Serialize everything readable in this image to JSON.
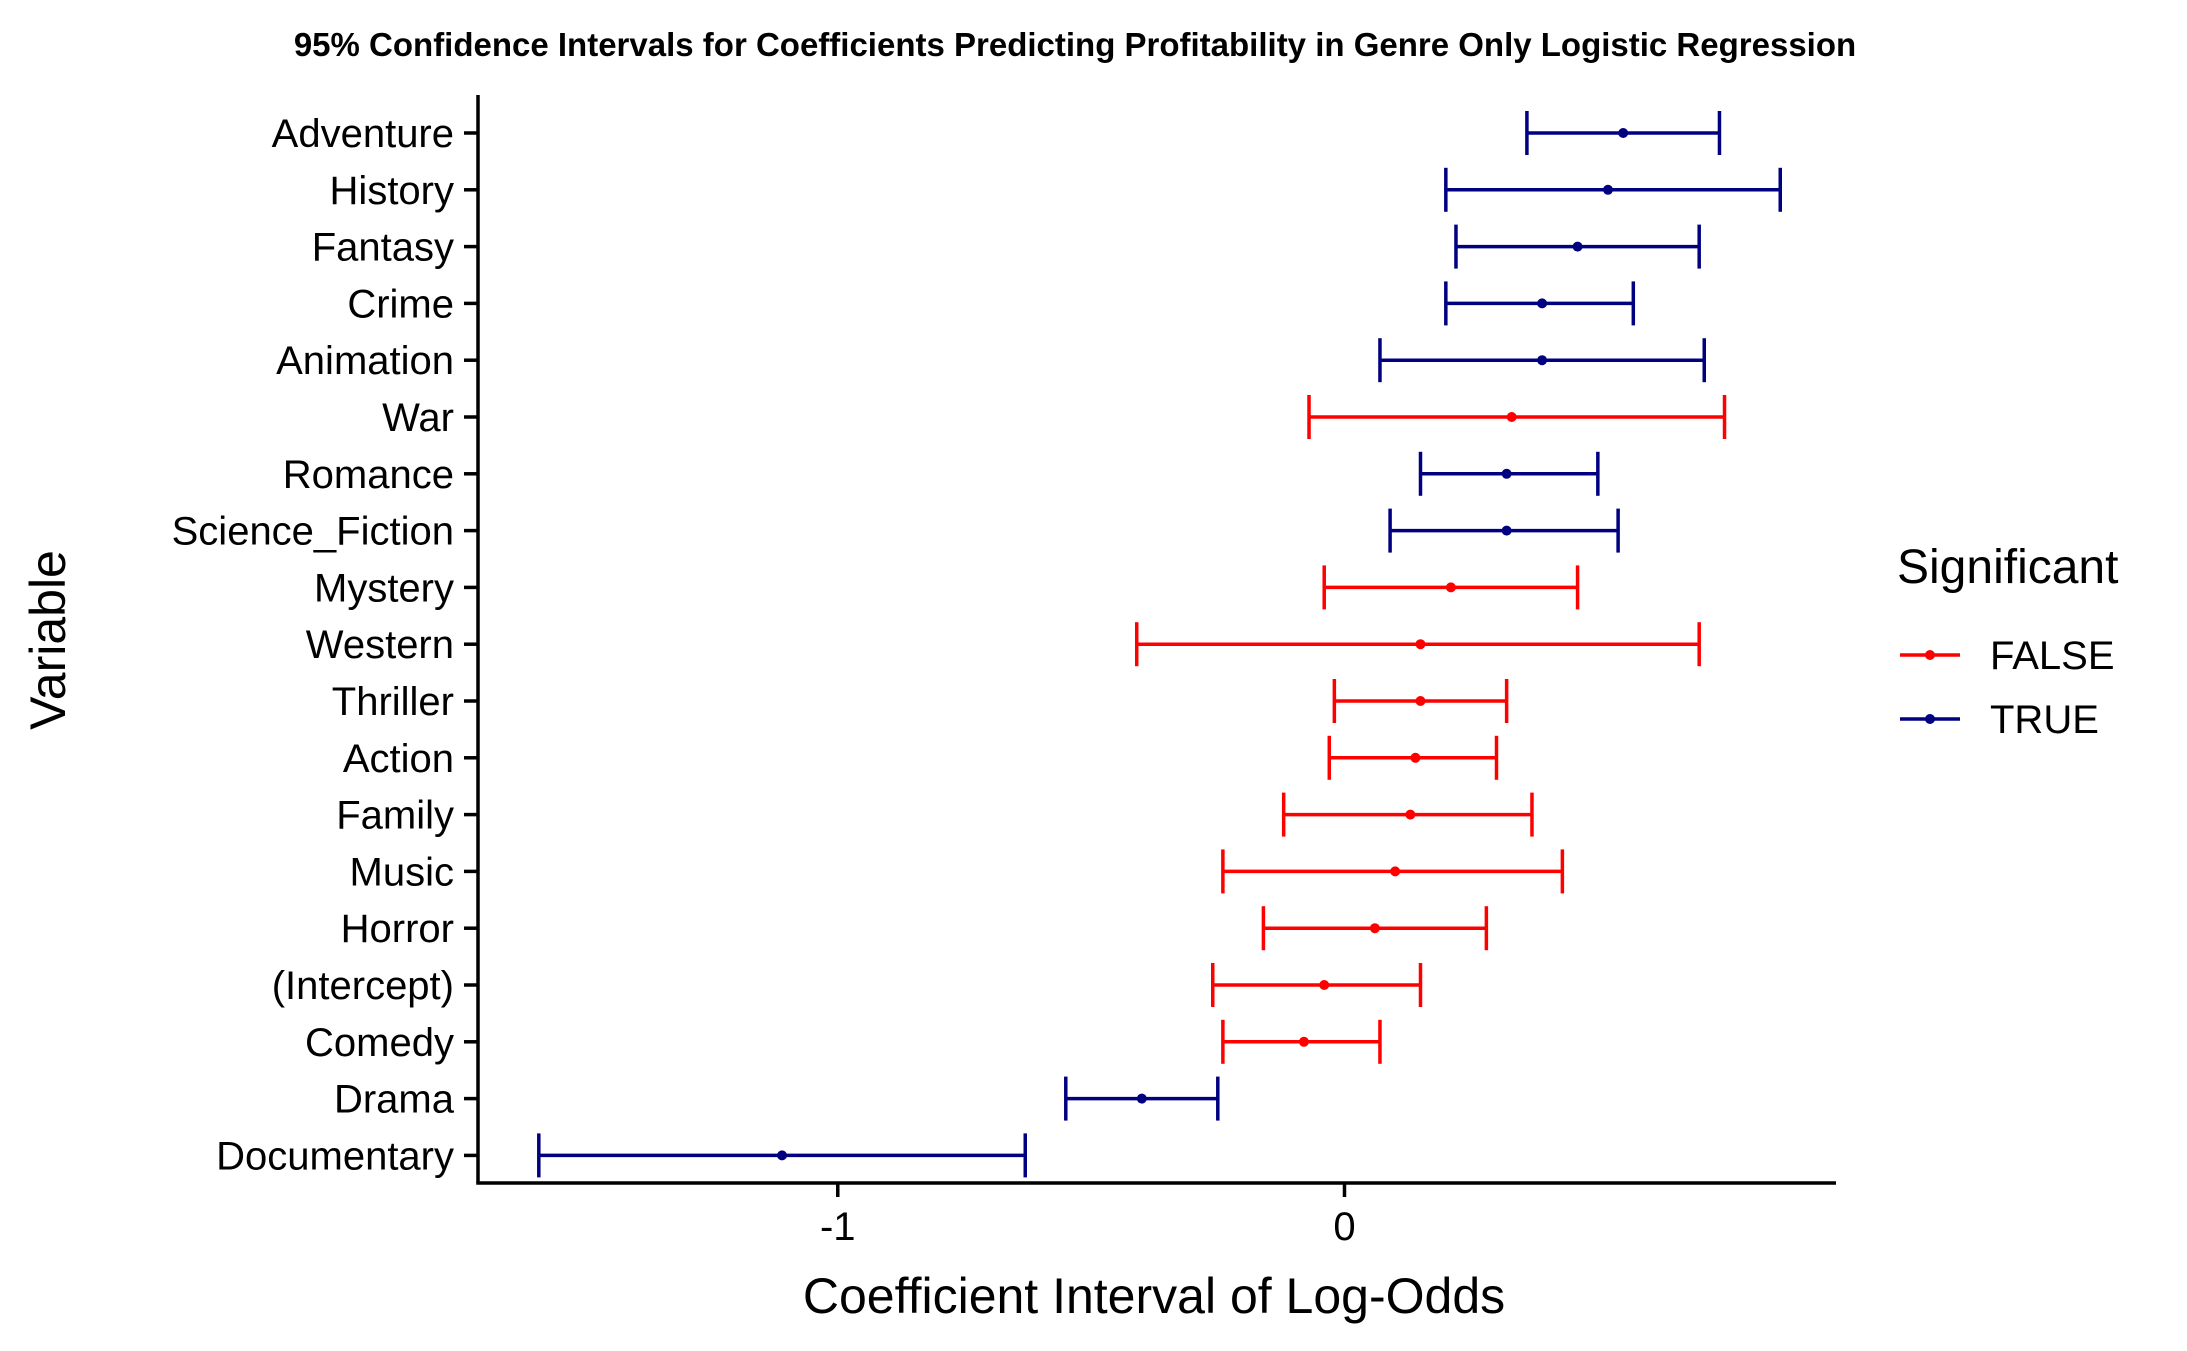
{
  "chart_data": {
    "type": "errorbar",
    "title": "95% Confidence Intervals for Coefficients Predicting Profitability in Genre Only Logistic Regression",
    "xlabel": "Coefficient Interval of Log-Odds",
    "ylabel": "Variable",
    "xlim": [
      -1.71,
      0.97
    ],
    "x_ticks": [
      -1,
      0
    ],
    "x_tick_labels": [
      "-1",
      "0"
    ],
    "grid": false,
    "legend": {
      "title": "Significant",
      "placement": "right",
      "entries": [
        {
          "label": "FALSE",
          "color": "#ff0000"
        },
        {
          "label": "TRUE",
          "color": "#000080"
        }
      ]
    },
    "colors": {
      "FALSE": "#ff0000",
      "TRUE": "#000080"
    },
    "rows": [
      {
        "variable": "Adventure",
        "estimate": 0.55,
        "low": 0.36,
        "high": 0.74,
        "significant": "TRUE"
      },
      {
        "variable": "History",
        "estimate": 0.52,
        "low": 0.2,
        "high": 0.86,
        "significant": "TRUE"
      },
      {
        "variable": "Fantasy",
        "estimate": 0.46,
        "low": 0.22,
        "high": 0.7,
        "significant": "TRUE"
      },
      {
        "variable": "Crime",
        "estimate": 0.39,
        "low": 0.2,
        "high": 0.57,
        "significant": "TRUE"
      },
      {
        "variable": "Animation",
        "estimate": 0.39,
        "low": 0.07,
        "high": 0.71,
        "significant": "TRUE"
      },
      {
        "variable": "War",
        "estimate": 0.33,
        "low": -0.07,
        "high": 0.75,
        "significant": "FALSE"
      },
      {
        "variable": "Romance",
        "estimate": 0.32,
        "low": 0.15,
        "high": 0.5,
        "significant": "TRUE"
      },
      {
        "variable": "Science_Fiction",
        "estimate": 0.32,
        "low": 0.09,
        "high": 0.54,
        "significant": "TRUE"
      },
      {
        "variable": "Mystery",
        "estimate": 0.21,
        "low": -0.04,
        "high": 0.46,
        "significant": "FALSE"
      },
      {
        "variable": "Western",
        "estimate": 0.15,
        "low": -0.41,
        "high": 0.7,
        "significant": "FALSE"
      },
      {
        "variable": "Thriller",
        "estimate": 0.15,
        "low": -0.02,
        "high": 0.32,
        "significant": "FALSE"
      },
      {
        "variable": "Action",
        "estimate": 0.14,
        "low": -0.03,
        "high": 0.3,
        "significant": "FALSE"
      },
      {
        "variable": "Family",
        "estimate": 0.13,
        "low": -0.12,
        "high": 0.37,
        "significant": "FALSE"
      },
      {
        "variable": "Music",
        "estimate": 0.1,
        "low": -0.24,
        "high": 0.43,
        "significant": "FALSE"
      },
      {
        "variable": "Horror",
        "estimate": 0.06,
        "low": -0.16,
        "high": 0.28,
        "significant": "FALSE"
      },
      {
        "variable": "(Intercept)",
        "estimate": -0.04,
        "low": -0.26,
        "high": 0.15,
        "significant": "FALSE"
      },
      {
        "variable": "Comedy",
        "estimate": -0.08,
        "low": -0.24,
        "high": 0.07,
        "significant": "FALSE"
      },
      {
        "variable": "Drama",
        "estimate": -0.4,
        "low": -0.55,
        "high": -0.25,
        "significant": "TRUE"
      },
      {
        "variable": "Documentary",
        "estimate": -1.11,
        "low": -1.59,
        "high": -0.63,
        "significant": "TRUE"
      }
    ]
  }
}
